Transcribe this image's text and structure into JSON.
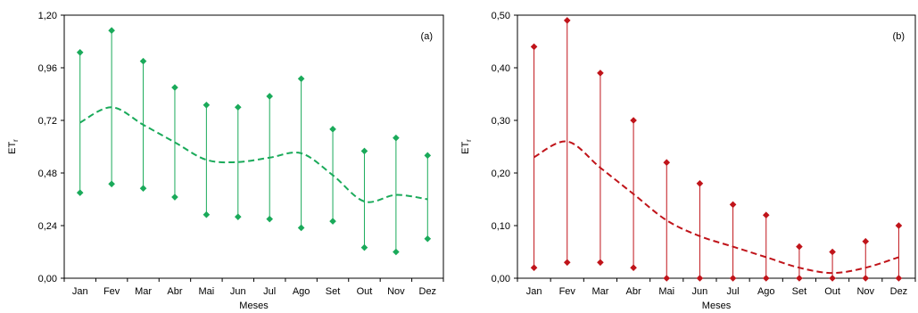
{
  "chart_data": [
    {
      "type": "range",
      "panel_label": "(a)",
      "ylabel": "ET",
      "ylabel_sub": "r",
      "xlabel": "Meses",
      "ylim": [
        0,
        1.2
      ],
      "yticks": [
        "0,00",
        "0,24",
        "0,48",
        "0,72",
        "0,96",
        "1,20"
      ],
      "categories": [
        "Jan",
        "Fev",
        "Mar",
        "Abr",
        "Mai",
        "Jun",
        "Jul",
        "Ago",
        "Set",
        "Out",
        "Nov",
        "Dez"
      ],
      "color": "#1aaa5a",
      "max": [
        1.03,
        1.13,
        0.99,
        0.87,
        0.79,
        0.78,
        0.83,
        0.91,
        0.68,
        0.58,
        0.64,
        0.56
      ],
      "min": [
        0.39,
        0.43,
        0.41,
        0.37,
        0.29,
        0.28,
        0.27,
        0.23,
        0.26,
        0.14,
        0.12,
        0.18
      ],
      "mean": [
        0.71,
        0.78,
        0.7,
        0.62,
        0.54,
        0.53,
        0.55,
        0.57,
        0.47,
        0.35,
        0.38,
        0.36
      ]
    },
    {
      "type": "range",
      "panel_label": "(b)",
      "ylabel": "ET",
      "ylabel_sub": "r",
      "xlabel": "Meses",
      "ylim": [
        0,
        0.5
      ],
      "yticks": [
        "0,00",
        "0,10",
        "0,20",
        "0,30",
        "0,40",
        "0,50"
      ],
      "categories": [
        "Jan",
        "Fev",
        "Mar",
        "Abr",
        "Mai",
        "Jun",
        "Jul",
        "Ago",
        "Set",
        "Out",
        "Nov",
        "Dez"
      ],
      "color": "#c0141a",
      "max": [
        0.44,
        0.49,
        0.39,
        0.3,
        0.22,
        0.18,
        0.14,
        0.12,
        0.06,
        0.05,
        0.07,
        0.1
      ],
      "min": [
        0.02,
        0.03,
        0.03,
        0.02,
        0.0,
        0.0,
        0.0,
        0.0,
        0.0,
        0.0,
        0.0,
        0.0
      ],
      "mean": [
        0.23,
        0.26,
        0.21,
        0.16,
        0.11,
        0.08,
        0.06,
        0.04,
        0.02,
        0.01,
        0.02,
        0.04
      ]
    }
  ]
}
